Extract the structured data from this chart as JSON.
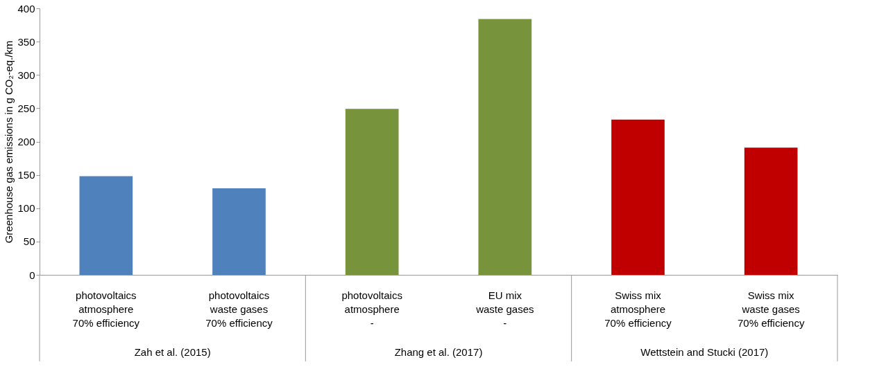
{
  "chart_data": {
    "type": "bar",
    "ylabel": "Greenhouse gas emissions in g CO₂-eq./km",
    "categories": [
      "photovoltaics\natmosphere\n70% efficiency",
      "photovoltaics\nwaste gases\n70% efficiency",
      "photovoltaics\natmosphere\n-",
      "EU mix\nwaste gases\n-",
      "Swiss mix\natmosphere\n70% efficiency",
      "Swiss mix\nwaste gases\n70% efficiency"
    ],
    "values": [
      148,
      130,
      249,
      384,
      233,
      191
    ],
    "colors": [
      "#4f81bd",
      "#4f81bd",
      "#77933c",
      "#77933c",
      "#c00000",
      "#c00000"
    ],
    "ylim": [
      0,
      400
    ],
    "yticks": [
      0,
      50,
      100,
      150,
      200,
      250,
      300,
      350,
      400
    ],
    "grid": false,
    "annotations": [
      "Zah et al. (2015)",
      "Zhang et al. (2017)",
      "Wettstein and Stucki (2017)"
    ]
  }
}
